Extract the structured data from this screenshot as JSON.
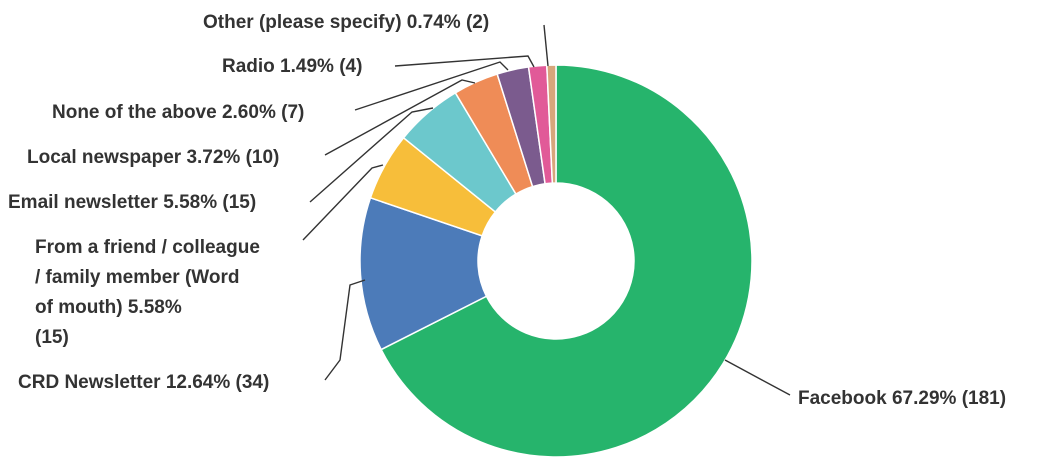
{
  "chart_data": {
    "type": "pie",
    "style": "donut",
    "title": "",
    "slices": [
      {
        "label": "Facebook",
        "percent": "67.29%",
        "count": "(181)",
        "value": 181,
        "color": "#26b46c"
      },
      {
        "label": "CRD Newsletter",
        "percent": "12.64%",
        "count": "(34)",
        "value": 34,
        "color": "#4c7bb9"
      },
      {
        "label": "From a friend / colleague / family member (Word of mouth)",
        "percent": "5.58%",
        "count": "(15)",
        "value": 15,
        "color": "#f7be3a"
      },
      {
        "label": "Email newsletter",
        "percent": "5.58%",
        "count": "(15)",
        "value": 15,
        "color": "#6cc8cc"
      },
      {
        "label": "Local newspaper",
        "percent": "3.72%",
        "count": "(10)",
        "value": 10,
        "color": "#ef8c57"
      },
      {
        "label": "None of the above",
        "percent": "2.60%",
        "count": "(7)",
        "value": 7,
        "color": "#7b5b8e"
      },
      {
        "label": "Radio",
        "percent": "1.49%",
        "count": "(4)",
        "value": 4,
        "color": "#e15a98"
      },
      {
        "label": "Other (please specify)",
        "percent": "0.74%",
        "count": "(2)",
        "value": 2,
        "color": "#d7a67b"
      }
    ],
    "label_lines": {
      "facebook": "Facebook 67.29% (181)",
      "crd_newsletter": "CRD Newsletter 12.64% (34)",
      "word_of_mouth": [
        "From a friend / colleague",
        "/ family member (Word",
        "of mouth) 5.58%",
        "(15)"
      ],
      "email_newsletter": "Email newsletter 5.58% (15)",
      "local_newspaper": "Local newspaper 3.72% (10)",
      "none_of_the_above": "None of the above 2.60% (7)",
      "radio": "Radio 1.49% (4)",
      "other": "Other (please specify) 0.74% (2)"
    }
  }
}
